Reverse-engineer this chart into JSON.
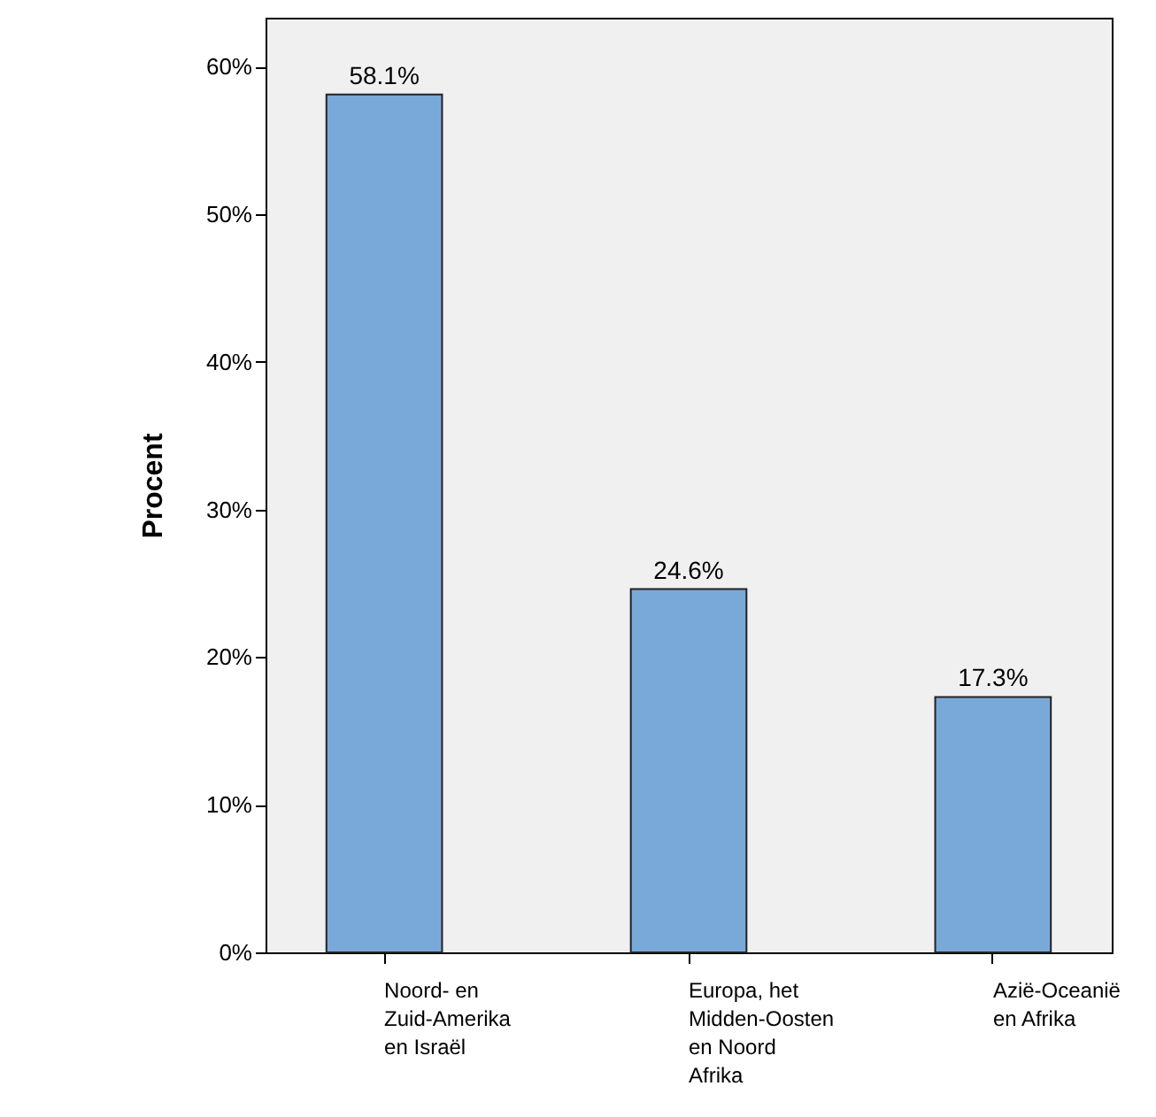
{
  "chart_data": {
    "type": "bar",
    "ylabel": "Procent",
    "categories": [
      "Noord- en Zuid-Amerika en Israël",
      "Europa, het Midden-Oosten en Noord Afrika",
      "Azië-Oceanië en Afrika"
    ],
    "values": [
      58.1,
      24.6,
      17.3
    ],
    "value_labels": [
      "58.1%",
      "24.6%",
      "17.3%"
    ],
    "color": "#79a9d9",
    "ylim": [
      0,
      63.3
    ],
    "yticks": [
      {
        "value": 0,
        "label": "0%"
      },
      {
        "value": 10,
        "label": "10%"
      },
      {
        "value": 20,
        "label": "20%"
      },
      {
        "value": 30,
        "label": "30%"
      },
      {
        "value": 40,
        "label": "40%"
      },
      {
        "value": 50,
        "label": "50%"
      },
      {
        "value": 60,
        "label": "60%"
      }
    ],
    "grid": false
  }
}
